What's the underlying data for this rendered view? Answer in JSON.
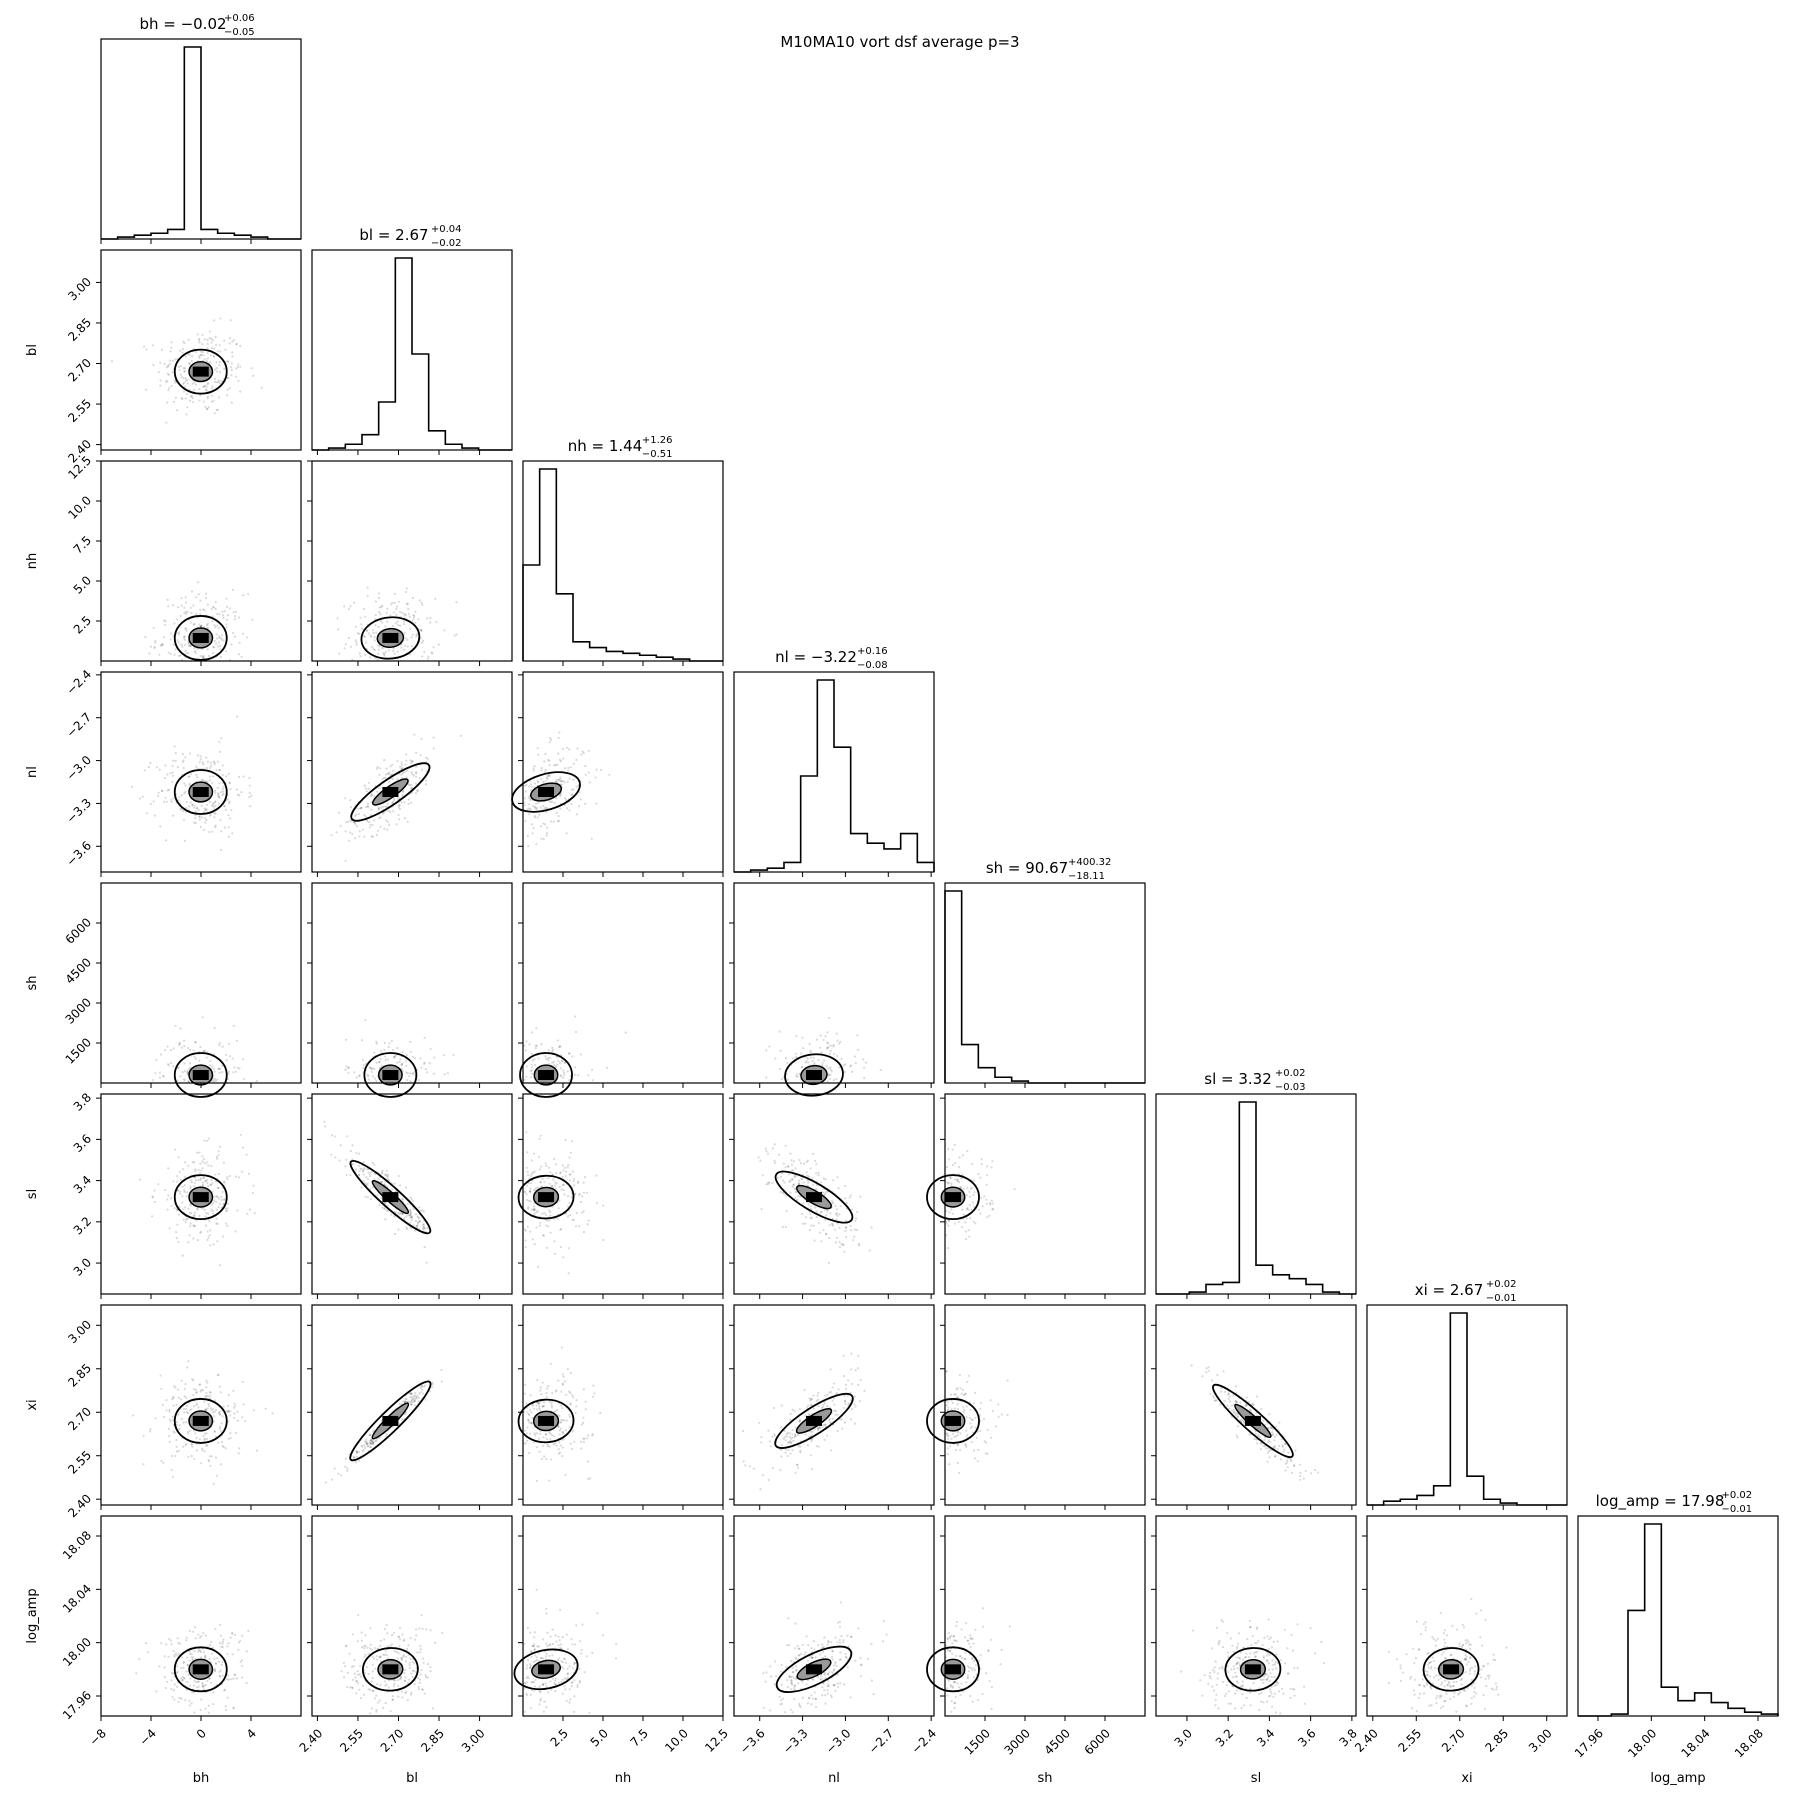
{
  "figure_title": "M10MA10 vort dsf average p=3",
  "chart_data": {
    "type": "corner",
    "title": "M10MA10 vort dsf average p=3",
    "parameters": [
      {
        "name": "bh",
        "label": "bh",
        "range": [
          -8,
          8
        ],
        "ticks": [
          -8,
          -4,
          0,
          4
        ],
        "tick_labels": [
          "−8",
          "−4",
          "0",
          "4"
        ],
        "median": -0.02,
        "plus": 0.06,
        "minus": 0.05,
        "title_main": "bh = −0.02",
        "title_sup": "+0.06",
        "title_sub": "−0.05"
      },
      {
        "name": "bl",
        "label": "bl",
        "range": [
          2.38,
          3.12
        ],
        "ticks": [
          2.4,
          2.55,
          2.7,
          2.85,
          3.0
        ],
        "tick_labels": [
          "2.40",
          "2.55",
          "2.70",
          "2.85",
          "3.00"
        ],
        "median": 2.67,
        "plus": 0.04,
        "minus": 0.02,
        "title_main": "bl = 2.67",
        "title_sup": "+0.04",
        "title_sub": "−0.02"
      },
      {
        "name": "nh",
        "label": "nh",
        "range": [
          0,
          12.5
        ],
        "ticks": [
          2.5,
          5.0,
          7.5,
          10.0,
          12.5
        ],
        "tick_labels": [
          "2.5",
          "5.0",
          "7.5",
          "10.0",
          "12.5"
        ],
        "median": 1.44,
        "plus": 1.26,
        "minus": 0.51,
        "title_main": "nh = 1.44",
        "title_sup": "+1.26",
        "title_sub": "−0.51"
      },
      {
        "name": "nl",
        "label": "nl",
        "range": [
          -3.78,
          -2.38
        ],
        "ticks": [
          -3.6,
          -3.3,
          -3.0,
          -2.7,
          -2.4
        ],
        "tick_labels": [
          "−3.6",
          "−3.3",
          "−3.0",
          "−2.7",
          "−2.4"
        ],
        "median": -3.22,
        "plus": 0.16,
        "minus": 0.08,
        "title_main": "nl = −3.22",
        "title_sup": "+0.16",
        "title_sub": "−0.08"
      },
      {
        "name": "sh",
        "label": "sh",
        "range": [
          0,
          7500
        ],
        "ticks": [
          1500,
          3000,
          4500,
          6000
        ],
        "tick_labels": [
          "1500",
          "3000",
          "4500",
          "6000"
        ],
        "median": 90.67,
        "plus": 400.32,
        "minus": 18.11,
        "title_main": "sh = 90.67",
        "title_sup": "+400.32",
        "title_sub": "−18.11"
      },
      {
        "name": "sl",
        "label": "sl",
        "range": [
          2.85,
          3.82
        ],
        "ticks": [
          3.0,
          3.2,
          3.4,
          3.6,
          3.8
        ],
        "tick_labels": [
          "3.0",
          "3.2",
          "3.4",
          "3.6",
          "3.8"
        ],
        "median": 3.32,
        "plus": 0.02,
        "minus": 0.03,
        "title_main": "sl = 3.32",
        "title_sup": "+0.02",
        "title_sub": "−0.03"
      },
      {
        "name": "xi",
        "label": "xi",
        "range": [
          2.38,
          3.07
        ],
        "ticks": [
          2.4,
          2.55,
          2.7,
          2.85,
          3.0
        ],
        "tick_labels": [
          "2.40",
          "2.55",
          "2.70",
          "2.85",
          "3.00"
        ],
        "median": 2.67,
        "plus": 0.02,
        "minus": 0.01,
        "title_main": "xi = 2.67",
        "title_sup": "+0.02",
        "title_sub": "−0.01"
      },
      {
        "name": "log_amp",
        "label": "log_amp",
        "range": [
          17.945,
          18.095
        ],
        "ticks": [
          17.96,
          18.0,
          18.04,
          18.08
        ],
        "tick_labels": [
          "17.96",
          "18.00",
          "18.04",
          "18.08"
        ],
        "median": 17.98,
        "plus": 0.02,
        "minus": 0.01,
        "title_main": "log_amp = 17.98",
        "title_sup": "+0.02",
        "title_sub": "−0.01"
      }
    ],
    "histograms": {
      "bh": [
        0.0,
        0.01,
        0.02,
        0.03,
        0.05,
        1.0,
        0.05,
        0.03,
        0.02,
        0.01,
        0.0,
        0.0
      ],
      "bl": [
        0.0,
        0.01,
        0.03,
        0.08,
        0.25,
        1.0,
        0.5,
        0.1,
        0.03,
        0.01,
        0.0,
        0.0
      ],
      "nh": [
        0.5,
        1.0,
        0.35,
        0.1,
        0.07,
        0.05,
        0.04,
        0.03,
        0.02,
        0.01,
        0.0,
        0.0
      ],
      "nl": [
        0.0,
        0.01,
        0.02,
        0.05,
        0.5,
        1.0,
        0.65,
        0.2,
        0.15,
        0.12,
        0.2,
        0.05
      ],
      "sh": [
        1.0,
        0.2,
        0.08,
        0.03,
        0.01,
        0.0,
        0.0,
        0.0,
        0.0,
        0.0,
        0.0,
        0.0
      ],
      "sl": [
        0.0,
        0.0,
        0.01,
        0.05,
        0.06,
        1.0,
        0.15,
        0.1,
        0.08,
        0.05,
        0.01,
        0.0
      ],
      "xi": [
        0.0,
        0.02,
        0.03,
        0.05,
        0.1,
        1.0,
        0.15,
        0.03,
        0.01,
        0.0,
        0.0,
        0.0
      ],
      "log_amp": [
        0.0,
        0.0,
        0.01,
        0.55,
        1.0,
        0.15,
        0.08,
        0.12,
        0.07,
        0.04,
        0.02,
        0.01
      ]
    },
    "correlations": {
      "bh-bl": 0.0,
      "bh-nh": 0.0,
      "bh-nl": 0.0,
      "bh-sh": 0.0,
      "bh-sl": 0.0,
      "bh-xi": 0.0,
      "bh-log_amp": 0.0,
      "bl-nh": 0.1,
      "bl-nl": 0.7,
      "bl-sh": 0.0,
      "bl-sl": -0.9,
      "bl-xi": 0.98,
      "bl-log_amp": 0.05,
      "nh-nl": 0.3,
      "nh-sh": 0.0,
      "nh-sl": 0.05,
      "nh-xi": 0.05,
      "nh-log_amp": 0.2,
      "nl-sh": 0.1,
      "nl-sl": -0.6,
      "nl-xi": 0.65,
      "nl-log_amp": 0.5,
      "sh-sl": 0.0,
      "sh-xi": 0.0,
      "sh-log_amp": 0.0,
      "sl-xi": -0.9,
      "sl-log_amp": 0.05,
      "xi-log_amp": 0.05
    },
    "grid": false
  }
}
